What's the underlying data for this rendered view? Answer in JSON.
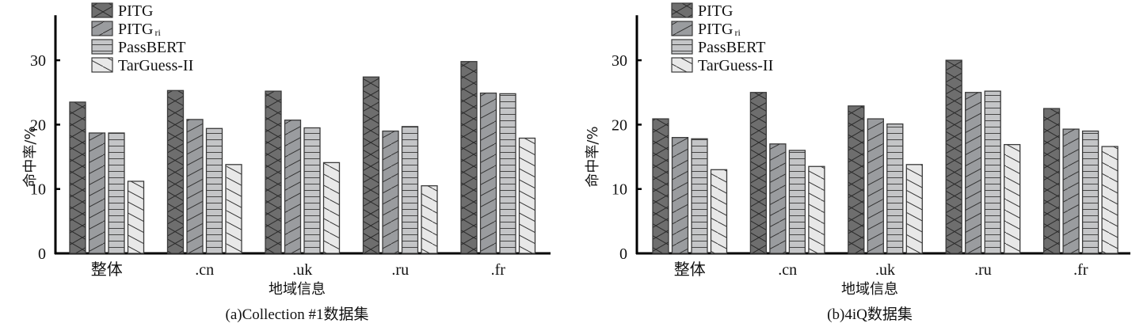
{
  "legend": [
    {
      "name": "PITG",
      "sub": "",
      "pattern": "cross",
      "fill": "#6e6e6e"
    },
    {
      "name": "PITG",
      "sub": "ri",
      "pattern": "diag-up",
      "fill": "#9a9c9f"
    },
    {
      "name": "PassBERT",
      "sub": "",
      "pattern": "horizontal",
      "fill": "#c4c5c7"
    },
    {
      "name": "TarGuess-II",
      "sub": "",
      "pattern": "diag-down",
      "fill": "#e8e8e8"
    }
  ],
  "chart_data": [
    {
      "type": "bar",
      "title": "(a)Collection #1数据集",
      "xlabel": "地域信息",
      "ylabel": "命中率/%",
      "ylim": [
        0,
        37
      ],
      "yticks": [
        0,
        10,
        20,
        30
      ],
      "grid": false,
      "legend_position": "top-left",
      "categories": [
        "整体",
        ".cn",
        ".uk",
        ".ru",
        ".fr"
      ],
      "series": [
        {
          "name": "PITG",
          "values": [
            23.5,
            25.3,
            25.2,
            27.4,
            29.8
          ]
        },
        {
          "name": "PITGri",
          "values": [
            18.7,
            20.8,
            20.7,
            19.0,
            24.9
          ]
        },
        {
          "name": "PassBERT",
          "values": [
            18.7,
            19.4,
            19.5,
            19.7,
            24.8
          ]
        },
        {
          "name": "TarGuess-II",
          "values": [
            11.2,
            13.8,
            14.1,
            10.5,
            17.9
          ]
        }
      ]
    },
    {
      "type": "bar",
      "title": "(b)4iQ数据集",
      "xlabel": "地域信息",
      "ylabel": "命中率/%",
      "ylim": [
        0,
        37
      ],
      "yticks": [
        0,
        10,
        20,
        30
      ],
      "grid": false,
      "legend_position": "top-left",
      "categories": [
        "整体",
        ".cn",
        ".uk",
        ".ru",
        ".fr"
      ],
      "series": [
        {
          "name": "PITG",
          "values": [
            20.9,
            25.0,
            22.9,
            30.0,
            22.5
          ]
        },
        {
          "name": "PITGri",
          "values": [
            18.0,
            17.0,
            20.9,
            25.0,
            19.3
          ]
        },
        {
          "name": "PassBERT",
          "values": [
            17.8,
            16.0,
            20.1,
            25.2,
            19.0
          ]
        },
        {
          "name": "TarGuess-II",
          "values": [
            13.0,
            13.5,
            13.8,
            16.9,
            16.6
          ]
        }
      ]
    }
  ]
}
